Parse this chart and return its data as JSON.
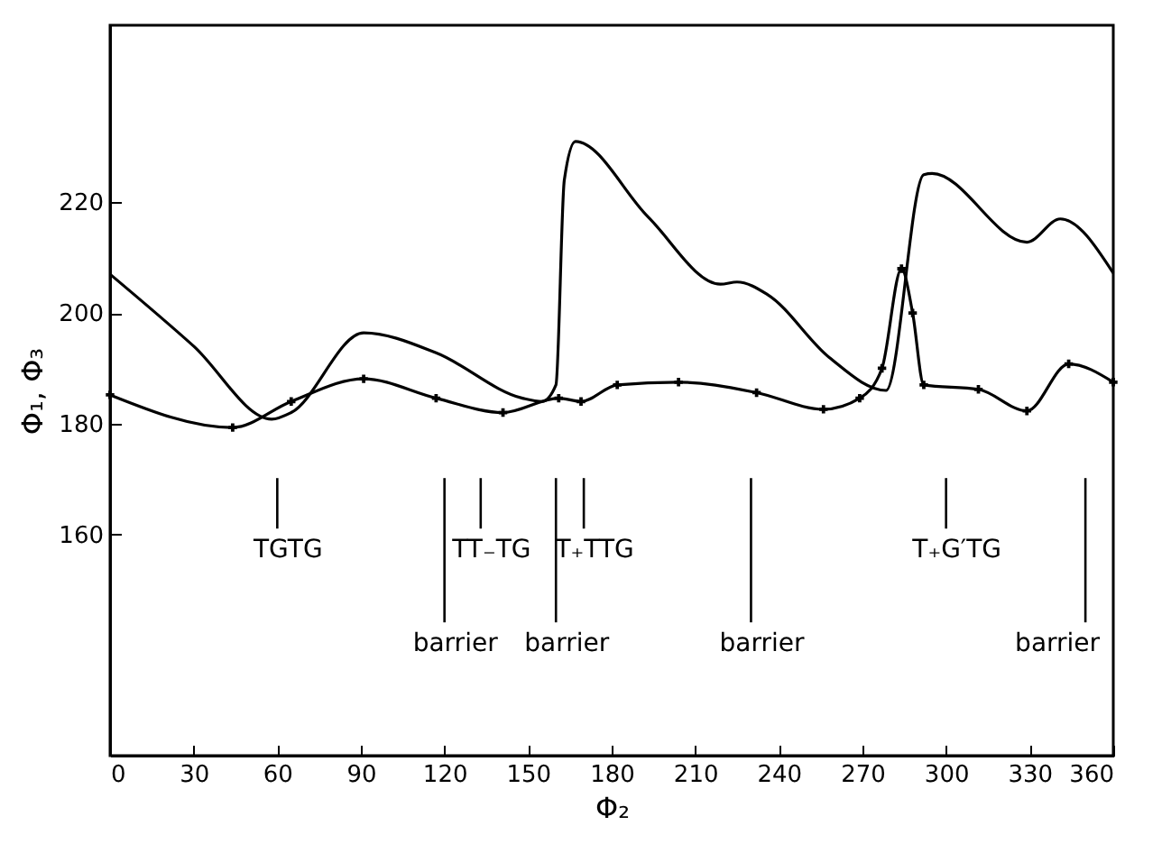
{
  "chart_data": {
    "type": "line",
    "xlabel": "Φ₂",
    "ylabel": "Φ₁, Φ₃",
    "xlim": [
      0,
      360
    ],
    "xticks": [
      0,
      30,
      60,
      90,
      120,
      150,
      180,
      210,
      240,
      270,
      300,
      330,
      360
    ],
    "ylim": [
      120,
      252
    ],
    "yticks": [
      160,
      180,
      200,
      220
    ],
    "grid": false,
    "line_style": "solid",
    "series": [
      {
        "color": "#000000",
        "marker": "none",
        "x": [
          0,
          30,
          58,
          65,
          91,
          117,
          148,
          155,
          160,
          163,
          167,
          193,
          219,
          225,
          236,
          258,
          278.5,
          292,
          295,
          329,
          341,
          360
        ],
        "values": [
          207,
          194,
          180.8,
          182,
          196.4,
          192.8,
          184.6,
          184,
          187,
          224,
          231,
          217.4,
          205.2,
          205.6,
          203.3,
          192,
          186,
          225,
          225.2,
          212.8,
          217,
          207.2
        ]
      },
      {
        "color": "#000000",
        "marker": "cross",
        "x": [
          0,
          44,
          65,
          91,
          117,
          141,
          161,
          169,
          182,
          204,
          232,
          256,
          269,
          277,
          284,
          288,
          292,
          311.6,
          329,
          344,
          360
        ],
        "values": [
          185.2,
          179.3,
          184,
          188.1,
          184.6,
          182,
          184.6,
          184,
          187,
          187.5,
          185.6,
          182.6,
          184.6,
          190,
          208,
          200,
          187,
          186.2,
          182.3,
          190.8,
          187.5
        ]
      }
    ],
    "ref_lines": [
      {
        "axis": "x",
        "value": 60,
        "label": "TGTG"
      },
      {
        "axis": "x",
        "value": 120,
        "label": "barrier"
      },
      {
        "axis": "x",
        "value": 133,
        "label": "TT₋TG"
      },
      {
        "axis": "x",
        "value": 160,
        "label": "barrier"
      },
      {
        "axis": "x",
        "value": 170,
        "label": "T₊TTG"
      },
      {
        "axis": "x",
        "value": 230,
        "label": "barrier"
      },
      {
        "axis": "x",
        "value": 300,
        "label": "T₊G′TG"
      },
      {
        "axis": "x",
        "value": 350,
        "label": "barrier"
      }
    ]
  }
}
